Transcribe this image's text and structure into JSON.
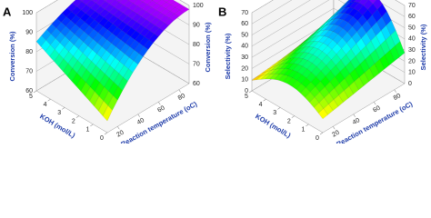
{
  "chart_data": [
    {
      "type": "surface3d",
      "panel": "A",
      "zlabel": "Conversion (%)",
      "xlabel": "KOH (mol/L)",
      "ylabel": "Reaction temperature (oC)",
      "zlim": [
        60,
        100
      ],
      "zticks": [
        60,
        70,
        80,
        90,
        100
      ],
      "xlim": [
        0,
        5
      ],
      "xticks": [
        0,
        1,
        2,
        3,
        4,
        5
      ],
      "ylim": [
        10,
        90
      ],
      "yticks": [
        20,
        40,
        60,
        80
      ]
    },
    {
      "type": "surface3d",
      "panel": "B",
      "zlabel": "Selectivity (%)",
      "xlabel": "KOH (mol/L)",
      "ylabel": "Reaction temperature (oC)",
      "zlim": [
        0,
        70
      ],
      "zticks": [
        0,
        10,
        20,
        30,
        40,
        50,
        60,
        70
      ],
      "xlim": [
        0,
        5
      ],
      "xticks": [
        0,
        1,
        2,
        3,
        4,
        5
      ],
      "ylim": [
        10,
        90
      ],
      "yticks": [
        20,
        40,
        60,
        80
      ]
    }
  ]
}
